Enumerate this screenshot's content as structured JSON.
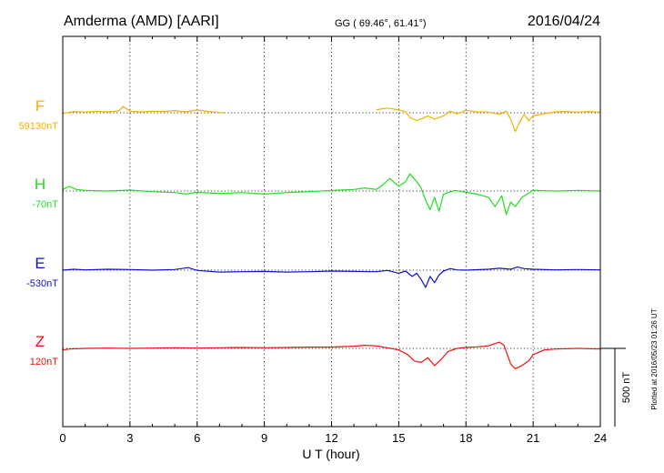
{
  "chart_data": {
    "type": "line",
    "station": "Amderma (AMD)  [AARI]",
    "coords": "GG ( 69.46°,  61.41°)",
    "date": "2016/04/24",
    "xlabel": "U T (hour)",
    "xlim": [
      0,
      24
    ],
    "x_ticks": [
      "0",
      "3",
      "6",
      "9",
      "12",
      "15",
      "18",
      "21",
      "24"
    ],
    "scale_label": "500 nT",
    "plotted_note": "Plotted at 2016/05/23 01:26 UT",
    "colors": {
      "F": "#f5b000",
      "H": "#22dd22",
      "E": "#1111cc",
      "Z": "#ee1111"
    },
    "series": [
      {
        "name": "F",
        "baseline_label": "59130nT",
        "points": [
          [
            0,
            -4
          ],
          [
            0.5,
            8
          ],
          [
            1,
            4
          ],
          [
            1.5,
            10
          ],
          [
            2,
            6
          ],
          [
            2.5,
            12
          ],
          [
            2.7,
            40
          ],
          [
            3,
            10
          ],
          [
            3.5,
            6
          ],
          [
            4,
            10
          ],
          [
            4.5,
            8
          ],
          [
            5,
            14
          ],
          [
            5.5,
            6
          ],
          [
            6,
            18
          ],
          [
            6.5,
            8
          ],
          [
            7,
            2
          ],
          [
            7.2,
            0
          ],
          null,
          [
            14,
            20
          ],
          [
            14.5,
            30
          ],
          [
            15,
            18
          ],
          [
            15.3,
            8
          ],
          [
            15.5,
            -30
          ],
          [
            15.8,
            -50
          ],
          [
            16,
            -40
          ],
          [
            16.3,
            -20
          ],
          [
            16.6,
            -40
          ],
          [
            17,
            -20
          ],
          [
            17.3,
            10
          ],
          [
            17.6,
            -6
          ],
          [
            18,
            16
          ],
          [
            18.5,
            6
          ],
          [
            19,
            4
          ],
          [
            19.5,
            -10
          ],
          [
            19.8,
            10
          ],
          [
            20,
            -40
          ],
          [
            20.2,
            -120
          ],
          [
            20.4,
            -60
          ],
          [
            20.6,
            -10
          ],
          [
            20.8,
            -50
          ],
          [
            21,
            -20
          ],
          [
            21.5,
            -6
          ],
          [
            22,
            6
          ],
          [
            22.5,
            8
          ],
          [
            23,
            4
          ],
          [
            23.5,
            8
          ],
          [
            24,
            4
          ]
        ]
      },
      {
        "name": "H",
        "baseline_label": "-70nT",
        "points": [
          [
            0,
            10
          ],
          [
            0.3,
            30
          ],
          [
            0.6,
            10
          ],
          [
            1,
            4
          ],
          [
            2,
            0
          ],
          [
            3,
            6
          ],
          [
            4,
            -4
          ],
          [
            5,
            -10
          ],
          [
            5.5,
            -20
          ],
          [
            6,
            -8
          ],
          [
            7,
            -16
          ],
          [
            8,
            -10
          ],
          [
            9,
            -20
          ],
          [
            10,
            -10
          ],
          [
            11,
            -4
          ],
          [
            12,
            4
          ],
          [
            13,
            10
          ],
          [
            13.5,
            20
          ],
          [
            14,
            10
          ],
          [
            14.3,
            40
          ],
          [
            14.6,
            80
          ],
          [
            15,
            30
          ],
          [
            15.3,
            60
          ],
          [
            15.5,
            110
          ],
          [
            15.8,
            60
          ],
          [
            16,
            20
          ],
          [
            16.2,
            -60
          ],
          [
            16.4,
            -120
          ],
          [
            16.6,
            -40
          ],
          [
            16.8,
            -130
          ],
          [
            17,
            -20
          ],
          [
            17.5,
            4
          ],
          [
            18,
            -8
          ],
          [
            18.5,
            -20
          ],
          [
            19,
            -40
          ],
          [
            19.3,
            -100
          ],
          [
            19.6,
            -30
          ],
          [
            19.8,
            -150
          ],
          [
            20,
            -70
          ],
          [
            20.2,
            -100
          ],
          [
            20.5,
            -40
          ],
          [
            21,
            4
          ],
          [
            22,
            0
          ],
          [
            23,
            4
          ],
          [
            24,
            0
          ]
        ]
      },
      {
        "name": "E",
        "baseline_label": "-530nT",
        "points": [
          [
            0,
            0
          ],
          [
            0.5,
            6
          ],
          [
            1,
            2
          ],
          [
            2,
            6
          ],
          [
            3,
            4
          ],
          [
            4,
            0
          ],
          [
            5,
            4
          ],
          [
            5.6,
            16
          ],
          [
            6,
            -2
          ],
          [
            7,
            -12
          ],
          [
            8,
            -10
          ],
          [
            9,
            -8
          ],
          [
            10,
            -12
          ],
          [
            11,
            -10
          ],
          [
            12,
            -6
          ],
          [
            13,
            -8
          ],
          [
            14,
            -10
          ],
          [
            14.5,
            -2
          ],
          [
            15,
            -20
          ],
          [
            15.3,
            -6
          ],
          [
            15.6,
            -40
          ],
          [
            15.8,
            -20
          ],
          [
            16,
            -60
          ],
          [
            16.2,
            -110
          ],
          [
            16.4,
            -40
          ],
          [
            16.6,
            -80
          ],
          [
            16.8,
            -30
          ],
          [
            17,
            -6
          ],
          [
            17.3,
            10
          ],
          [
            17.6,
            2
          ],
          [
            18,
            0
          ],
          [
            19,
            6
          ],
          [
            19.5,
            12
          ],
          [
            20,
            6
          ],
          [
            20.3,
            20
          ],
          [
            20.6,
            10
          ],
          [
            21,
            6
          ],
          [
            22,
            2
          ],
          [
            23,
            4
          ],
          [
            24,
            2
          ]
        ]
      },
      {
        "name": "Z",
        "baseline_label": "120nT",
        "points": [
          [
            0,
            -10
          ],
          [
            0.3,
            -4
          ],
          [
            1,
            0
          ],
          [
            2,
            2
          ],
          [
            3,
            0
          ],
          [
            4,
            2
          ],
          [
            5,
            4
          ],
          [
            6,
            2
          ],
          [
            7,
            4
          ],
          [
            8,
            6
          ],
          [
            9,
            4
          ],
          [
            10,
            6
          ],
          [
            11,
            8
          ],
          [
            12,
            8
          ],
          [
            13,
            14
          ],
          [
            13.5,
            20
          ],
          [
            14,
            16
          ],
          [
            15,
            -10
          ],
          [
            15.4,
            -40
          ],
          [
            15.7,
            -80
          ],
          [
            16,
            -90
          ],
          [
            16.3,
            -60
          ],
          [
            16.6,
            -110
          ],
          [
            16.9,
            -70
          ],
          [
            17.2,
            -20
          ],
          [
            17.6,
            0
          ],
          [
            18,
            6
          ],
          [
            18.5,
            10
          ],
          [
            19,
            16
          ],
          [
            19.5,
            40
          ],
          [
            19.7,
            20
          ],
          [
            20,
            -100
          ],
          [
            20.2,
            -130
          ],
          [
            20.5,
            -110
          ],
          [
            20.8,
            -80
          ],
          [
            21,
            -40
          ],
          [
            21.5,
            -10
          ],
          [
            22,
            -4
          ],
          [
            23,
            0
          ],
          [
            24,
            -4
          ]
        ]
      }
    ]
  }
}
